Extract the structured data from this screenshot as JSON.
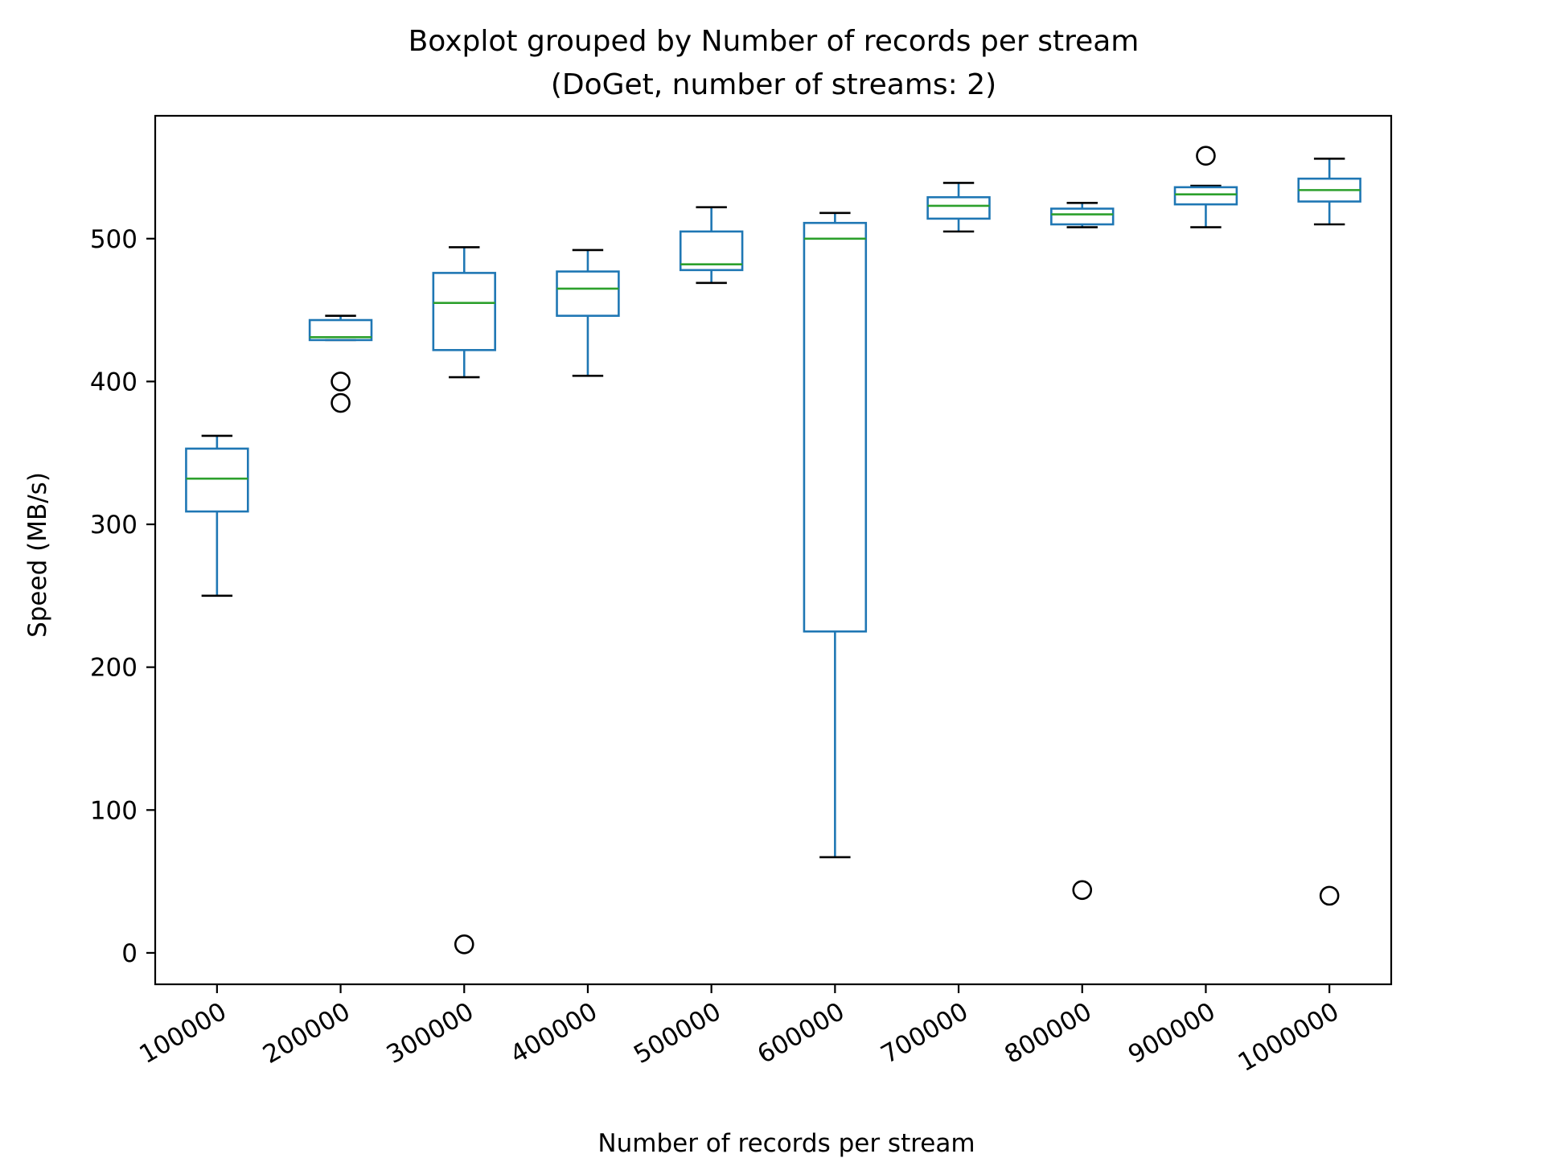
{
  "chart_data": {
    "type": "boxplot",
    "title": "Boxplot grouped by Number of records per stream",
    "subtitle": "(DoGet, number of streams: 2)",
    "xlabel": "Number of records per stream",
    "ylabel": "Speed (MB/s)",
    "ylim": [
      -22,
      586
    ],
    "yticks": [
      0,
      100,
      200,
      300,
      400,
      500
    ],
    "grid": false,
    "colors": {
      "box": "#1f77b4",
      "median": "#2ca02c",
      "whisker": "#1f77b4",
      "cap": "#000000",
      "flier": "#000000"
    },
    "categories": [
      "100000",
      "200000",
      "300000",
      "400000",
      "500000",
      "600000",
      "700000",
      "800000",
      "900000",
      "1000000"
    ],
    "boxes": [
      {
        "whislo": 250,
        "q1": 309,
        "med": 332,
        "q3": 353,
        "whishi": 362,
        "fliers": []
      },
      {
        "whislo": 429,
        "q1": 429,
        "med": 431,
        "q3": 443,
        "whishi": 446,
        "fliers": [
          400,
          385
        ]
      },
      {
        "whislo": 403,
        "q1": 422,
        "med": 455,
        "q3": 476,
        "whishi": 494,
        "fliers": [
          6
        ]
      },
      {
        "whislo": 404,
        "q1": 446,
        "med": 465,
        "q3": 477,
        "whishi": 492,
        "fliers": []
      },
      {
        "whislo": 469,
        "q1": 478,
        "med": 482,
        "q3": 505,
        "whishi": 522,
        "fliers": []
      },
      {
        "whislo": 67,
        "q1": 225,
        "med": 500,
        "q3": 511,
        "whishi": 518,
        "fliers": []
      },
      {
        "whislo": 505,
        "q1": 514,
        "med": 523,
        "q3": 529,
        "whishi": 539,
        "fliers": []
      },
      {
        "whislo": 508,
        "q1": 510,
        "med": 517,
        "q3": 521,
        "whishi": 525,
        "fliers": [
          44
        ]
      },
      {
        "whislo": 508,
        "q1": 524,
        "med": 531,
        "q3": 536,
        "whishi": 537,
        "fliers": [
          558
        ]
      },
      {
        "whislo": 510,
        "q1": 526,
        "med": 534,
        "q3": 542,
        "whishi": 556,
        "fliers": [
          40
        ]
      }
    ]
  }
}
